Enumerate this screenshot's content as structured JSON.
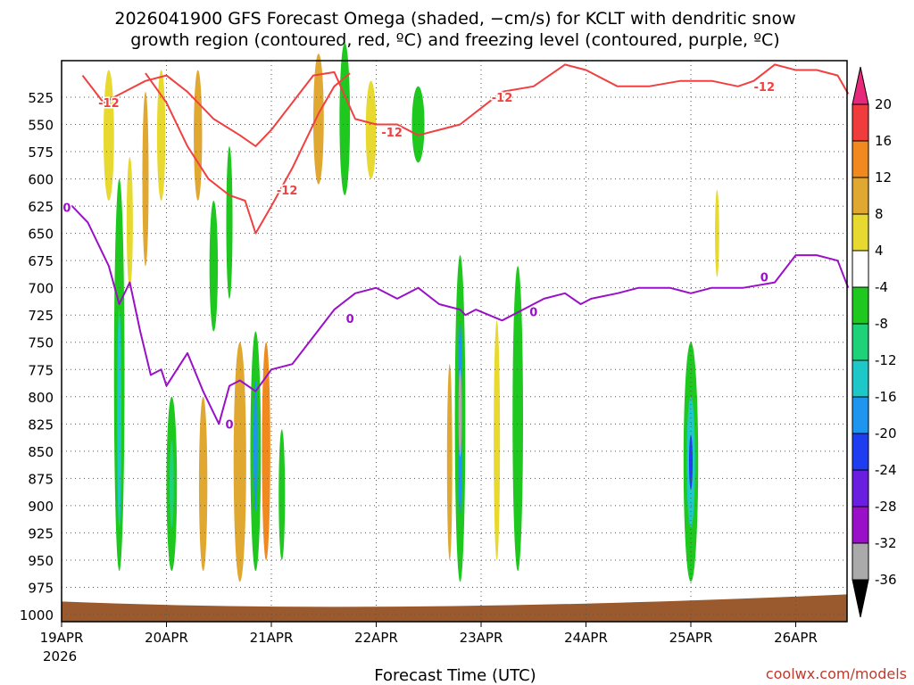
{
  "chart_data": {
    "type": "heatmap",
    "title_line1": "2026041900 GFS Forecast Omega (shaded, −cm/s) for KCLT with dendritic snow",
    "title_line2": "growth region (contoured, red, ºC) and freezing level (contoured, purple, ºC)",
    "xlabel": "Forecast Time (UTC)",
    "watermark": "coolwx.com/models",
    "year_label": "2026",
    "x_ticks": [
      "19APR",
      "20APR",
      "21APR",
      "22APR",
      "23APR",
      "24APR",
      "25APR",
      "26APR"
    ],
    "x_range_days": [
      0,
      7.5
    ],
    "y_ticks": [
      525,
      550,
      575,
      600,
      625,
      650,
      675,
      700,
      725,
      750,
      775,
      800,
      825,
      850,
      875,
      900,
      925,
      950,
      975,
      1000
    ],
    "y_range_hpa": [
      500,
      1010
    ],
    "colorbar": {
      "ticks": [
        20,
        16,
        12,
        8,
        4,
        -4,
        -8,
        -12,
        -16,
        -20,
        -24,
        -28,
        -32,
        -36
      ],
      "bins": [
        {
          "value": 18,
          "color": "#f03c3c"
        },
        {
          "value": 14,
          "color": "#f08a1e"
        },
        {
          "value": 10,
          "color": "#e0a830"
        },
        {
          "value": 6,
          "color": "#e8d930"
        },
        {
          "value": 0,
          "color": "#ffffff"
        },
        {
          "value": -6,
          "color": "#1ec81e"
        },
        {
          "value": -10,
          "color": "#1ed27a"
        },
        {
          "value": -14,
          "color": "#1ec8c8"
        },
        {
          "value": -18,
          "color": "#1e96f0"
        },
        {
          "value": -22,
          "color": "#1e3cf0"
        },
        {
          "value": -26,
          "color": "#6a1ee0"
        },
        {
          "value": -30,
          "color": "#9a10c8"
        },
        {
          "value": -34,
          "color": "#aaaaaa"
        }
      ],
      "top_arrow_color": "#e8287a",
      "bottom_arrow_color": "#000000"
    },
    "contour_labels": {
      "dendritic": "-12",
      "freezing": "0"
    },
    "freezing_level": {
      "name": "0C isotherm",
      "color": "#9a10c8",
      "x": [
        0,
        0.1,
        0.25,
        0.45,
        0.55,
        0.65,
        0.75,
        0.85,
        0.95,
        1.0,
        1.2,
        1.35,
        1.5,
        1.6,
        1.7,
        1.85,
        2.0,
        2.2,
        2.4,
        2.6,
        2.8,
        3.0,
        3.2,
        3.4,
        3.6,
        3.8,
        3.85,
        3.95,
        4.2,
        4.4,
        4.6,
        4.8,
        4.95,
        5.05,
        5.3,
        5.5,
        5.8,
        6.0,
        6.2,
        6.5,
        6.8,
        7.0,
        7.2,
        7.4,
        7.5
      ],
      "hpa": [
        627,
        625,
        640,
        680,
        715,
        695,
        740,
        780,
        775,
        790,
        760,
        795,
        825,
        790,
        785,
        795,
        775,
        770,
        745,
        720,
        705,
        700,
        710,
        700,
        715,
        720,
        725,
        720,
        730,
        720,
        710,
        705,
        715,
        710,
        705,
        700,
        700,
        705,
        700,
        700,
        695,
        670,
        670,
        675,
        700
      ]
    },
    "dendritic_upper": {
      "name": "-12C isotherm (upper)",
      "color": "#f04040",
      "x": [
        0.2,
        0.4,
        0.6,
        0.8,
        1.0,
        1.2,
        1.45,
        1.7,
        1.85,
        2.0,
        2.2,
        2.4,
        2.6,
        2.8,
        3.0,
        3.2,
        3.4,
        3.6,
        3.8,
        4.0,
        4.2,
        4.5,
        4.8,
        5.0,
        5.3,
        5.6,
        5.9,
        6.2,
        6.45,
        6.6,
        6.8,
        7.0,
        7.2,
        7.4,
        7.5
      ],
      "hpa": [
        505,
        530,
        520,
        510,
        505,
        520,
        545,
        560,
        570,
        555,
        530,
        505,
        502,
        545,
        550,
        550,
        560,
        555,
        550,
        535,
        520,
        515,
        495,
        500,
        515,
        515,
        510,
        510,
        515,
        510,
        495,
        500,
        500,
        505,
        522
      ]
    },
    "dendritic_lower": {
      "name": "-12C isotherm (lower)",
      "color": "#f04040",
      "x": [
        0.8,
        1.0,
        1.2,
        1.4,
        1.6,
        1.75,
        1.85,
        2.0,
        2.2,
        2.45,
        2.6,
        2.75
      ],
      "hpa": [
        503,
        530,
        570,
        600,
        615,
        620,
        650,
        625,
        590,
        540,
        515,
        503
      ]
    },
    "omega_cells": [
      {
        "day": 0.45,
        "hpa": 560,
        "half_width": 0.05,
        "half_height": 60,
        "value": 6
      },
      {
        "day": 0.55,
        "hpa": 780,
        "half_width": 0.05,
        "half_height": 180,
        "value": -8
      },
      {
        "day": 0.55,
        "hpa": 820,
        "half_width": 0.02,
        "half_height": 100,
        "value": -14
      },
      {
        "day": 0.65,
        "hpa": 640,
        "half_width": 0.03,
        "half_height": 60,
        "value": 6
      },
      {
        "day": 0.8,
        "hpa": 600,
        "half_width": 0.03,
        "half_height": 80,
        "value": 8
      },
      {
        "day": 0.95,
        "hpa": 560,
        "half_width": 0.04,
        "half_height": 60,
        "value": 6
      },
      {
        "day": 1.05,
        "hpa": 880,
        "half_width": 0.05,
        "half_height": 80,
        "value": -8
      },
      {
        "day": 1.05,
        "hpa": 880,
        "half_width": 0.02,
        "half_height": 40,
        "value": -10
      },
      {
        "day": 1.3,
        "hpa": 560,
        "half_width": 0.04,
        "half_height": 60,
        "value": 8
      },
      {
        "day": 1.35,
        "hpa": 880,
        "half_width": 0.04,
        "half_height": 80,
        "value": 8
      },
      {
        "day": 1.45,
        "hpa": 680,
        "half_width": 0.04,
        "half_height": 60,
        "value": -6
      },
      {
        "day": 1.6,
        "hpa": 640,
        "half_width": 0.03,
        "half_height": 70,
        "value": -6
      },
      {
        "day": 1.7,
        "hpa": 860,
        "half_width": 0.06,
        "half_height": 110,
        "value": 8
      },
      {
        "day": 1.85,
        "hpa": 850,
        "half_width": 0.05,
        "half_height": 110,
        "value": -8
      },
      {
        "day": 1.85,
        "hpa": 845,
        "half_width": 0.02,
        "half_height": 60,
        "value": -20
      },
      {
        "day": 1.95,
        "hpa": 850,
        "half_width": 0.04,
        "half_height": 100,
        "value": 12
      },
      {
        "day": 2.1,
        "hpa": 890,
        "half_width": 0.03,
        "half_height": 60,
        "value": -6
      },
      {
        "day": 2.45,
        "hpa": 545,
        "half_width": 0.05,
        "half_height": 60,
        "value": 8
      },
      {
        "day": 2.7,
        "hpa": 545,
        "half_width": 0.05,
        "half_height": 70,
        "value": -8
      },
      {
        "day": 2.95,
        "hpa": 555,
        "half_width": 0.05,
        "half_height": 45,
        "value": 6
      },
      {
        "day": 3.4,
        "hpa": 550,
        "half_width": 0.06,
        "half_height": 35,
        "value": -6
      },
      {
        "day": 3.8,
        "hpa": 820,
        "half_width": 0.05,
        "half_height": 150,
        "value": -8
      },
      {
        "day": 3.8,
        "hpa": 820,
        "half_width": 0.02,
        "half_height": 90,
        "value": -18
      },
      {
        "day": 3.8,
        "hpa": 815,
        "half_width": 0.008,
        "half_height": 40,
        "value": -34
      },
      {
        "day": 3.7,
        "hpa": 860,
        "half_width": 0.025,
        "half_height": 90,
        "value": 10
      },
      {
        "day": 4.35,
        "hpa": 820,
        "half_width": 0.05,
        "half_height": 140,
        "value": -8
      },
      {
        "day": 4.15,
        "hpa": 840,
        "half_width": 0.03,
        "half_height": 110,
        "value": 6
      },
      {
        "day": 6.0,
        "hpa": 860,
        "half_width": 0.07,
        "half_height": 110,
        "value": -8
      },
      {
        "day": 6.0,
        "hpa": 860,
        "half_width": 0.04,
        "half_height": 60,
        "value": -14
      },
      {
        "day": 6.0,
        "hpa": 860,
        "half_width": 0.015,
        "half_height": 25,
        "value": -22
      },
      {
        "day": 6.25,
        "hpa": 650,
        "half_width": 0.02,
        "half_height": 40,
        "value": 6
      }
    ],
    "ground": {
      "color": "#9a5a2e",
      "top_hpa": 988
    }
  }
}
